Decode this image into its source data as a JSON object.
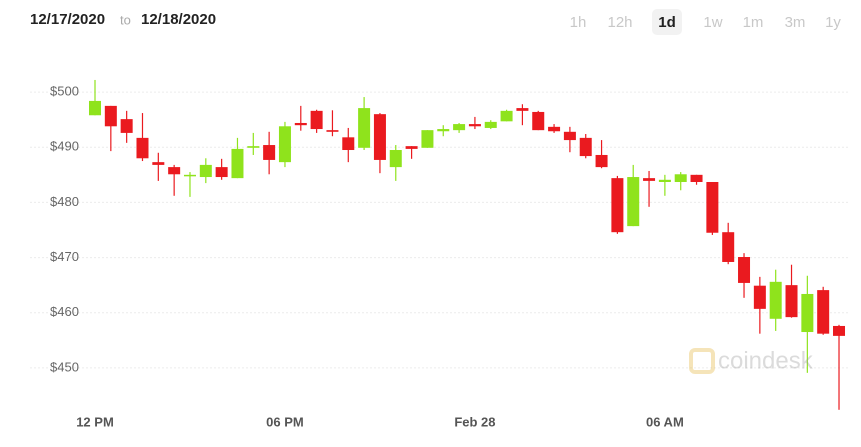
{
  "header": {
    "from": "12/17/2020",
    "separator": "to",
    "to": "12/18/2020",
    "ranges": [
      "1h",
      "12h",
      "1d",
      "1w",
      "1m",
      "3m",
      "1y"
    ],
    "selected_range": 2
  },
  "watermark": "coindesk",
  "chart_data": {
    "type": "candlestick",
    "categories": [
      "12 PM",
      null,
      null,
      null,
      null,
      null,
      null,
      null,
      null,
      null,
      null,
      null,
      "06 PM",
      null,
      null,
      null,
      null,
      null,
      null,
      null,
      null,
      null,
      null,
      null,
      "Feb 28",
      null,
      null,
      null,
      null,
      null,
      null,
      null,
      null,
      null,
      null,
      null,
      "06 AM",
      null,
      null,
      null,
      null,
      null,
      null,
      null,
      null,
      null,
      null,
      null
    ],
    "open": [
      495.8,
      497.5,
      495.1,
      491.7,
      487.3,
      486.4,
      484.8,
      484.6,
      486.4,
      484.4,
      489.9,
      490.4,
      487.3,
      494.4,
      496.6,
      493.1,
      491.8,
      489.9,
      496.0,
      486.4,
      490.2,
      489.9,
      492.9,
      493.1,
      494.2,
      493.5,
      494.7,
      497.1,
      496.4,
      493.7,
      492.8,
      491.7,
      488.6,
      484.4,
      475.7,
      484.4,
      483.7,
      483.7,
      485.0,
      483.7,
      474.6,
      470.1,
      464.9,
      458.9,
      465.0,
      456.5,
      464.1,
      457.6
    ],
    "high": [
      502.2,
      497.5,
      496.6,
      496.2,
      489.0,
      486.8,
      485.5,
      488.0,
      487.9,
      491.7,
      492.6,
      492.8,
      494.6,
      497.5,
      496.8,
      496.7,
      493.5,
      499.1,
      496.2,
      490.4,
      490.2,
      493.1,
      494.0,
      494.4,
      495.5,
      494.9,
      496.8,
      497.8,
      496.6,
      494.2,
      493.7,
      492.4,
      491.3,
      484.8,
      486.8,
      485.7,
      485.0,
      485.5,
      485.0,
      483.7,
      476.3,
      470.8,
      466.5,
      467.8,
      468.7,
      466.7,
      464.7,
      457.8
    ],
    "low": [
      495.8,
      489.3,
      490.8,
      487.5,
      483.9,
      481.2,
      481.0,
      483.5,
      484.1,
      484.4,
      488.6,
      485.1,
      486.4,
      493.0,
      492.6,
      492.0,
      487.3,
      489.5,
      485.3,
      483.9,
      487.9,
      489.9,
      492.0,
      492.6,
      493.3,
      493.3,
      494.7,
      494.0,
      493.1,
      492.6,
      489.1,
      488.0,
      486.2,
      474.3,
      475.7,
      479.2,
      481.2,
      482.2,
      483.2,
      474.1,
      468.8,
      462.7,
      456.2,
      456.7,
      459.1,
      449.1,
      456.0,
      442.4
    ],
    "close": [
      498.4,
      493.8,
      492.6,
      488.0,
      486.8,
      485.1,
      485.0,
      486.8,
      484.6,
      489.7,
      490.2,
      487.7,
      493.8,
      494.0,
      493.3,
      492.8,
      489.5,
      497.1,
      487.7,
      489.5,
      489.7,
      493.1,
      493.3,
      494.2,
      493.8,
      494.6,
      496.6,
      496.6,
      493.1,
      492.9,
      491.3,
      488.4,
      486.4,
      474.6,
      484.6,
      483.9,
      484.1,
      485.1,
      483.7,
      474.5,
      469.2,
      465.4,
      460.7,
      465.6,
      459.2,
      463.4,
      456.2,
      455.8
    ],
    "up_color": "#8fe31c",
    "down_color": "#ea1a1f",
    "ylim": [
      442,
      506
    ],
    "yticks": [
      {
        "value": 450,
        "label": "$450"
      },
      {
        "value": 460,
        "label": "$460"
      },
      {
        "value": 470,
        "label": "$470"
      },
      {
        "value": 480,
        "label": "$480"
      },
      {
        "value": 490,
        "label": "$490"
      },
      {
        "value": 500,
        "label": "$500"
      }
    ],
    "grid": true
  }
}
